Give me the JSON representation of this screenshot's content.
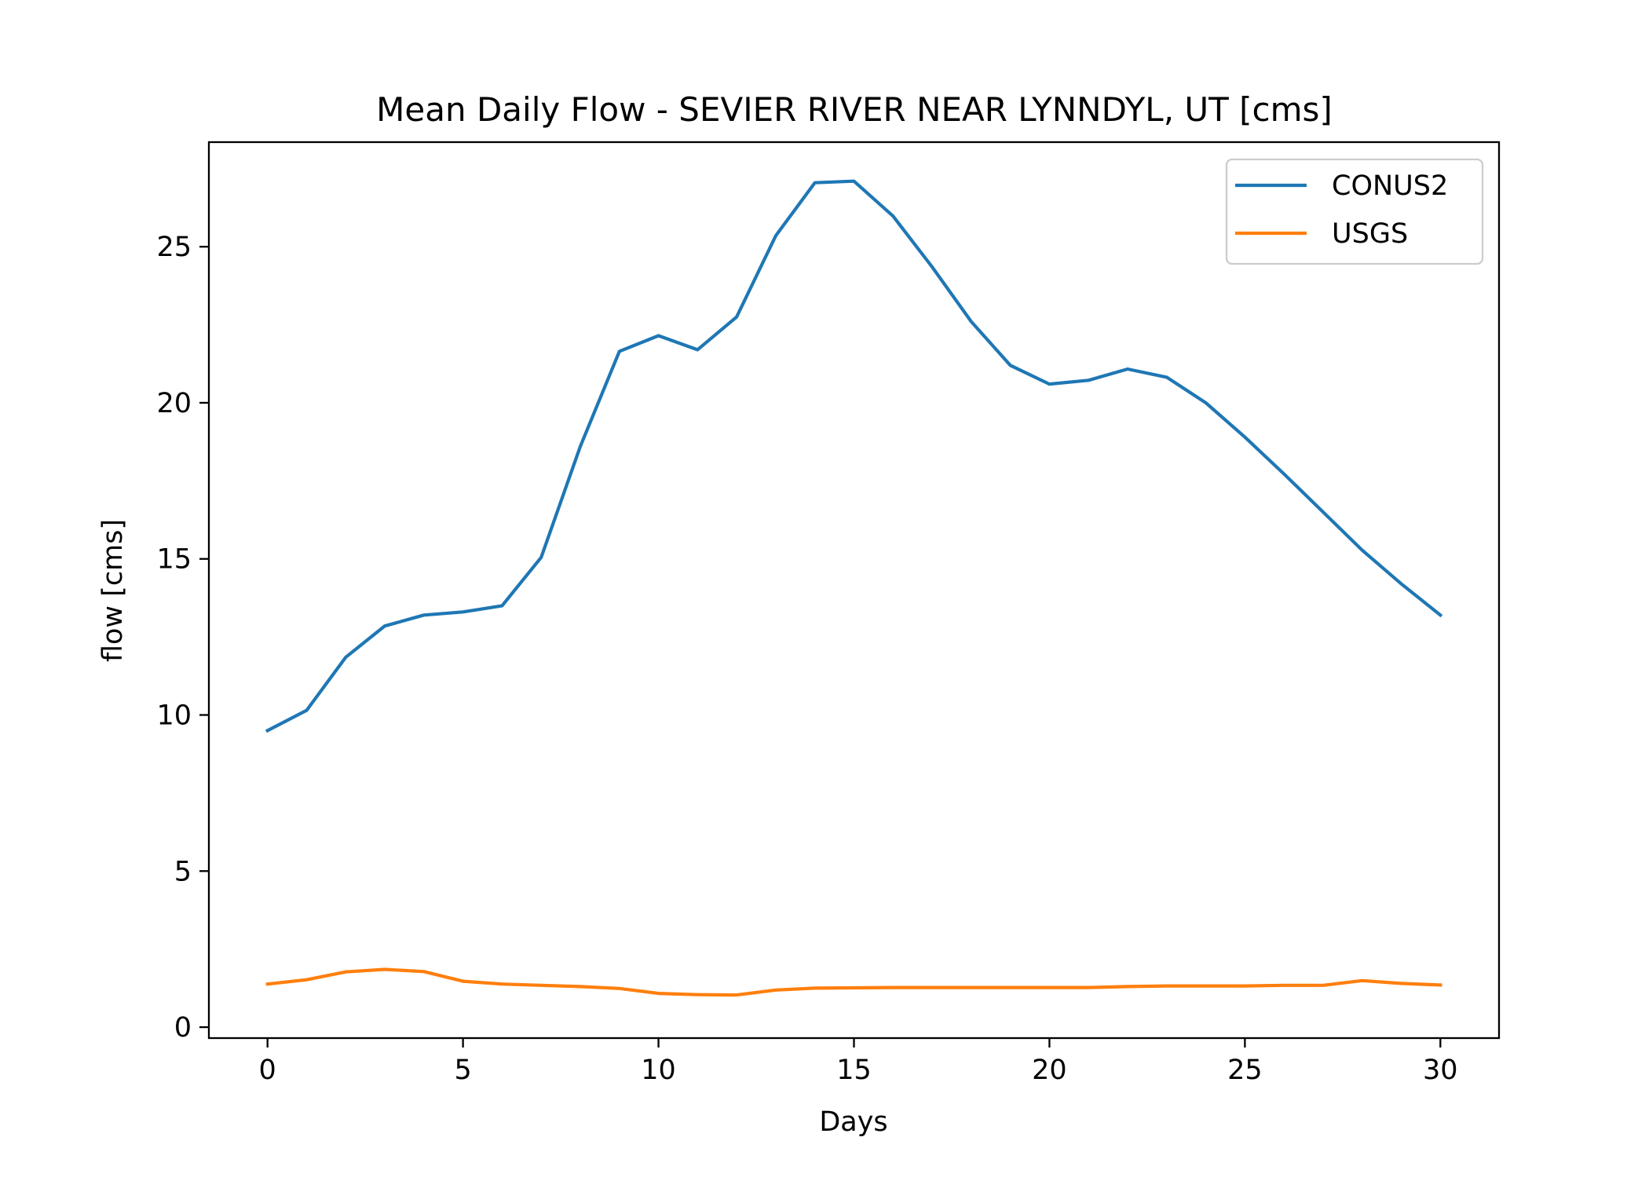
{
  "chart_data": {
    "type": "line",
    "title": "Mean Daily Flow - SEVIER RIVER NEAR LYNNDYL, UT [cms]",
    "xlabel": "Days",
    "ylabel": "flow [cms]",
    "xlim": [
      -1.5,
      31.5
    ],
    "ylim": [
      -0.35,
      28.35
    ],
    "xticks": [
      0,
      5,
      10,
      15,
      20,
      25,
      30
    ],
    "yticks": [
      0,
      5,
      10,
      15,
      20,
      25
    ],
    "grid": false,
    "legend_position": "top-right",
    "x": [
      0,
      1,
      2,
      3,
      4,
      5,
      6,
      7,
      8,
      9,
      10,
      11,
      12,
      13,
      14,
      15,
      16,
      17,
      18,
      19,
      20,
      21,
      22,
      23,
      24,
      25,
      26,
      27,
      28,
      29,
      30
    ],
    "series": [
      {
        "name": "CONUS2",
        "color": "#1f77b4",
        "values": [
          9.5,
          10.15,
          11.85,
          12.85,
          13.2,
          13.3,
          13.5,
          15.05,
          18.6,
          21.65,
          22.15,
          21.7,
          22.75,
          25.35,
          27.05,
          27.1,
          25.98,
          24.35,
          22.6,
          21.2,
          20.6,
          20.72,
          21.08,
          20.82,
          20.0,
          18.9,
          17.72,
          16.5,
          15.28,
          14.2,
          13.2
        ]
      },
      {
        "name": "USGS",
        "color": "#ff7f0e",
        "values": [
          1.38,
          1.52,
          1.77,
          1.85,
          1.78,
          1.47,
          1.38,
          1.34,
          1.3,
          1.24,
          1.08,
          1.04,
          1.03,
          1.19,
          1.25,
          1.26,
          1.27,
          1.27,
          1.27,
          1.27,
          1.27,
          1.27,
          1.3,
          1.32,
          1.32,
          1.32,
          1.34,
          1.34,
          1.49,
          1.4,
          1.35
        ]
      }
    ]
  }
}
